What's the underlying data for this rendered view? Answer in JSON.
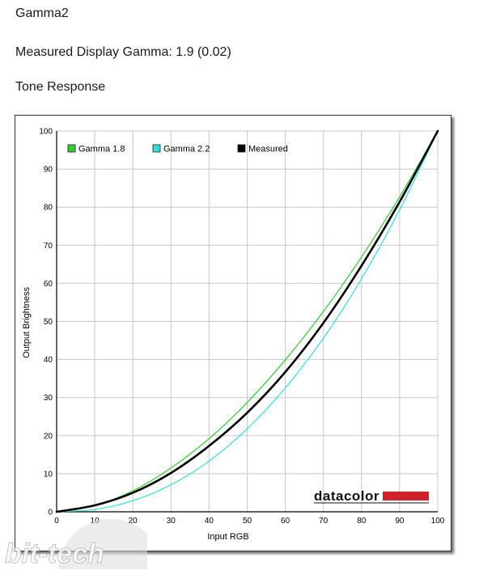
{
  "header": {
    "title": "Gamma2",
    "measured_gamma": "Measured Display Gamma: 1.9 (0.02)",
    "section": "Tone Response"
  },
  "branding": {
    "logo_text": "datacolor",
    "logo_color": "#d0202b",
    "watermark_text": "bit-tech"
  },
  "chart_data": {
    "type": "line",
    "title": "",
    "xlabel": "Input RGB",
    "ylabel": "Output Brightness",
    "xlim": [
      0,
      100
    ],
    "ylim": [
      0,
      100
    ],
    "xticks": [
      0,
      10,
      20,
      30,
      40,
      50,
      60,
      70,
      80,
      90,
      100
    ],
    "yticks": [
      0,
      10,
      20,
      30,
      40,
      50,
      60,
      70,
      80,
      90,
      100
    ],
    "grid": true,
    "legend_position": "top-left",
    "x": [
      0,
      10,
      20,
      30,
      40,
      50,
      60,
      70,
      80,
      90,
      100
    ],
    "series": [
      {
        "name": "Gamma 1.8",
        "color": "#33cc33",
        "values": [
          0,
          1.6,
          5.5,
          11.5,
          19.2,
          28.7,
          39.9,
          52.6,
          66.9,
          82.7,
          100
        ]
      },
      {
        "name": "Gamma 2.2",
        "color": "#33dddd",
        "values": [
          0,
          0.6,
          2.9,
          7.1,
          13.3,
          21.8,
          32.5,
          45.6,
          61.2,
          79.3,
          100
        ]
      },
      {
        "name": "Measured",
        "color": "#000000",
        "values": [
          0,
          1.7,
          5.0,
          10.2,
          17.3,
          26.0,
          36.7,
          49.6,
          64.6,
          81.4,
          100
        ]
      }
    ]
  }
}
